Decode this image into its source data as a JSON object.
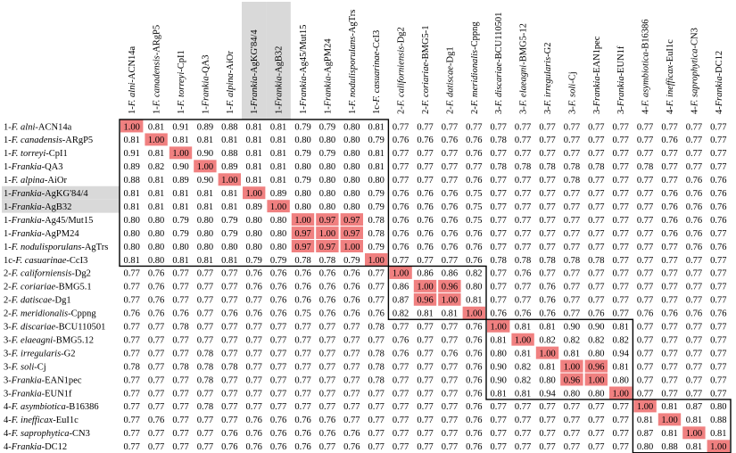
{
  "chart_data": {
    "type": "heatmap",
    "highlight_color": "#f08080",
    "shade_color": "#d9d9d9",
    "labels": [
      [
        "1-",
        "F. alni",
        "-ACN14a"
      ],
      [
        "1-",
        "F. canadensis",
        "-ARgP5"
      ],
      [
        "1-",
        "F. torreyi",
        "-CpI1"
      ],
      [
        "1-",
        "Frankia",
        "-QA3"
      ],
      [
        "1-",
        "F. alpina",
        "-AiOr"
      ],
      [
        "1-",
        "Frankia",
        "-AgKG'84/4"
      ],
      [
        "1-",
        "Frankia",
        "-AgB32"
      ],
      [
        "1-",
        "Frankia",
        "-Ag45/Mut15"
      ],
      [
        "1-",
        "Frankia",
        "-AgPM24"
      ],
      [
        "1-",
        "F. nodulisporulans",
        "-AgTrs"
      ],
      [
        "1c-",
        "F. casuarinae",
        "-CcI3"
      ],
      [
        "2-",
        "F. californiensis",
        "-Dg2"
      ],
      [
        "2-",
        "F. coriariae",
        "-BMG5.1"
      ],
      [
        "2-",
        "F. datiscae",
        "-Dg1"
      ],
      [
        "2-",
        "F. meridionalis",
        "-Cppng"
      ],
      [
        "3-",
        "F. discariae",
        "-BCU110501"
      ],
      [
        "3-",
        "F. elaeagni",
        "-BMG5.12"
      ],
      [
        "3-",
        "F. irregularis",
        "-G2"
      ],
      [
        "3-",
        "F. soli",
        "-Cj"
      ],
      [
        "3-",
        "Frankia",
        "-EAN1pec"
      ],
      [
        "3-",
        "Frankia",
        "-EUN1f"
      ],
      [
        "4-",
        "F. asymbiotica",
        "-B16386"
      ],
      [
        "4-",
        "F. inefficax",
        "-EuI1c"
      ],
      [
        "4-",
        "F. saprophytica",
        "-CN3"
      ],
      [
        "4-",
        "Frankia",
        "-DC12"
      ]
    ],
    "column_labels": [
      [
        "1-",
        "F. alni",
        "-ACN14a"
      ],
      [
        "1-",
        "F. canadensis",
        "-ARgP5"
      ],
      [
        "1-",
        "F. torreyi",
        "-CpI1"
      ],
      [
        "1-",
        "Frankia",
        "-QA3"
      ],
      [
        "1-",
        "F. alpina",
        "-AiOr"
      ],
      [
        "1-",
        "Frankia",
        "-AgKG'84/4"
      ],
      [
        "1-",
        "Frankia",
        "-AgB32"
      ],
      [
        "1-",
        "Frankia",
        "-Ag45/Mut15"
      ],
      [
        "1-",
        "Frankia",
        "-AgPM24"
      ],
      [
        "1-",
        "F. nodulisporulans",
        "-AgTrs"
      ],
      [
        "1c-",
        "F. casuarinae",
        "-CcI3"
      ],
      [
        "2-",
        "F. californiensis",
        "-Dg2"
      ],
      [
        "2-",
        "F. coriariae",
        "-BMG5-1"
      ],
      [
        "2-",
        "F. datiscae",
        "-Dg1"
      ],
      [
        "2-",
        "F. meridionalis",
        "-Cppng"
      ],
      [
        "3-",
        "F. discariae",
        "-BCU110501"
      ],
      [
        "3-",
        "F. elaeagni",
        "-BMG5-12"
      ],
      [
        "3-",
        "F. irregularis",
        "-G2"
      ],
      [
        "3-",
        "F. soli",
        "-Cj"
      ],
      [
        "3-",
        "Frankia",
        "-EAN1pec"
      ],
      [
        "3-",
        "Frankia",
        "-EUN1f"
      ],
      [
        "4-",
        "F. asymbiotica",
        "-B16386"
      ],
      [
        "4-",
        "F. inefficax",
        "-EuI1c"
      ],
      [
        "4-",
        "F. saprophytica",
        "-CN3"
      ],
      [
        "4-",
        "Frankia",
        "-DC12"
      ]
    ],
    "shaded_items": [
      5,
      6
    ],
    "cluster_boxes": [
      [
        0,
        10
      ],
      [
        11,
        14
      ],
      [
        15,
        20
      ],
      [
        21,
        24
      ]
    ],
    "highlighted_cells": [
      [
        0,
        0
      ],
      [
        1,
        1
      ],
      [
        2,
        2
      ],
      [
        3,
        3
      ],
      [
        4,
        4
      ],
      [
        5,
        5
      ],
      [
        6,
        6
      ],
      [
        7,
        7
      ],
      [
        7,
        8
      ],
      [
        7,
        9
      ],
      [
        8,
        7
      ],
      [
        8,
        8
      ],
      [
        8,
        9
      ],
      [
        9,
        7
      ],
      [
        9,
        8
      ],
      [
        9,
        9
      ],
      [
        10,
        10
      ],
      [
        11,
        11
      ],
      [
        12,
        12
      ],
      [
        12,
        13
      ],
      [
        13,
        12
      ],
      [
        13,
        13
      ],
      [
        14,
        14
      ],
      [
        15,
        15
      ],
      [
        16,
        16
      ],
      [
        17,
        17
      ],
      [
        18,
        18
      ],
      [
        18,
        19
      ],
      [
        19,
        18
      ],
      [
        19,
        19
      ],
      [
        20,
        20
      ],
      [
        21,
        21
      ],
      [
        22,
        22
      ],
      [
        23,
        23
      ],
      [
        24,
        24
      ]
    ],
    "values": [
      [
        "1.00",
        "0.81",
        "0.91",
        "0.89",
        "0.88",
        "0.81",
        "0.81",
        "0.79",
        "0.79",
        "0.80",
        "0.81",
        "0.77",
        "0.77",
        "0.77",
        "0.77",
        "0.77",
        "0.77",
        "0.77",
        "0.77",
        "0.77",
        "0.77",
        "0.77",
        "0.77",
        "0.77",
        "0.77"
      ],
      [
        "0.81",
        "1.00",
        "0.81",
        "0.81",
        "0.81",
        "0.81",
        "0.81",
        "0.80",
        "0.80",
        "0.80",
        "0.79",
        "0.76",
        "0.76",
        "0.76",
        "0.76",
        "0.78",
        "0.77",
        "0.77",
        "0.77",
        "0.77",
        "0.77",
        "0.77",
        "0.76",
        "0.77",
        "0.77"
      ],
      [
        "0.91",
        "0.81",
        "1.00",
        "0.90",
        "0.88",
        "0.81",
        "0.81",
        "0.79",
        "0.79",
        "0.80",
        "0.81",
        "0.77",
        "0.77",
        "0.77",
        "0.76",
        "0.77",
        "0.77",
        "0.77",
        "0.77",
        "0.77",
        "0.77",
        "0.77",
        "0.77",
        "0.77",
        "0.77"
      ],
      [
        "0.89",
        "0.82",
        "0.90",
        "1.00",
        "0.89",
        "0.81",
        "0.81",
        "0.80",
        "0.80",
        "0.80",
        "0.81",
        "0.77",
        "0.77",
        "0.77",
        "0.77",
        "0.78",
        "0.78",
        "0.78",
        "0.78",
        "0.78",
        "0.77",
        "0.78",
        "0.77",
        "0.77",
        "0.77"
      ],
      [
        "0.88",
        "0.81",
        "0.89",
        "0.90",
        "1.00",
        "0.81",
        "0.81",
        "0.79",
        "0.80",
        "0.80",
        "0.80",
        "0.77",
        "0.77",
        "0.77",
        "0.76",
        "0.77",
        "0.77",
        "0.77",
        "0.78",
        "0.77",
        "0.77",
        "0.77",
        "0.77",
        "0.76",
        "0.76"
      ],
      [
        "0.81",
        "0.81",
        "0.81",
        "0.81",
        "0.81",
        "1.00",
        "0.89",
        "0.80",
        "0.80",
        "0.80",
        "0.79",
        "0.76",
        "0.76",
        "0.76",
        "0.75",
        "0.77",
        "0.77",
        "0.77",
        "0.77",
        "0.77",
        "0.77",
        "0.77",
        "0.76",
        "0.76",
        "0.76"
      ],
      [
        "0.81",
        "0.81",
        "0.81",
        "0.81",
        "0.81",
        "0.89",
        "1.00",
        "0.80",
        "0.80",
        "0.80",
        "0.79",
        "0.76",
        "0.76",
        "0.76",
        "0.75",
        "0.77",
        "0.77",
        "0.77",
        "0.77",
        "0.77",
        "0.77",
        "0.77",
        "0.76",
        "0.76",
        "0.76"
      ],
      [
        "0.80",
        "0.80",
        "0.79",
        "0.80",
        "0.79",
        "0.80",
        "0.80",
        "1.00",
        "0.97",
        "0.97",
        "0.78",
        "0.76",
        "0.76",
        "0.76",
        "0.75",
        "0.77",
        "0.77",
        "0.77",
        "0.77",
        "0.77",
        "0.77",
        "0.77",
        "0.76",
        "0.76",
        "0.76"
      ],
      [
        "0.80",
        "0.80",
        "0.79",
        "0.80",
        "0.79",
        "0.80",
        "0.80",
        "0.97",
        "1.00",
        "0.97",
        "0.78",
        "0.76",
        "0.76",
        "0.76",
        "0.76",
        "0.77",
        "0.77",
        "0.77",
        "0.77",
        "0.77",
        "0.77",
        "0.77",
        "0.76",
        "0.76",
        "0.77"
      ],
      [
        "0.80",
        "0.80",
        "0.80",
        "0.80",
        "0.80",
        "0.80",
        "0.80",
        "0.97",
        "0.97",
        "1.00",
        "0.79",
        "0.76",
        "0.76",
        "0.76",
        "0.76",
        "0.77",
        "0.77",
        "0.77",
        "0.77",
        "0.77",
        "0.77",
        "0.77",
        "0.77",
        "0.76",
        "0.76"
      ],
      [
        "0.81",
        "0.80",
        "0.81",
        "0.81",
        "0.81",
        "0.79",
        "0.79",
        "0.78",
        "0.78",
        "0.79",
        "1.00",
        "0.77",
        "0.77",
        "0.77",
        "0.76",
        "0.78",
        "0.78",
        "0.78",
        "0.78",
        "0.78",
        "0.77",
        "0.77",
        "0.77",
        "0.77",
        "0.77"
      ],
      [
        "0.77",
        "0.76",
        "0.77",
        "0.77",
        "0.77",
        "0.76",
        "0.76",
        "0.76",
        "0.76",
        "0.76",
        "0.77",
        "1.00",
        "0.86",
        "0.86",
        "0.82",
        "0.77",
        "0.76",
        "0.77",
        "0.77",
        "0.77",
        "0.77",
        "0.77",
        "0.77",
        "0.77",
        "0.77"
      ],
      [
        "0.77",
        "0.76",
        "0.77",
        "0.77",
        "0.77",
        "0.76",
        "0.76",
        "0.76",
        "0.76",
        "0.76",
        "0.77",
        "0.86",
        "1.00",
        "0.96",
        "0.80",
        "0.77",
        "0.77",
        "0.76",
        "0.77",
        "0.77",
        "0.77",
        "0.77",
        "0.77",
        "0.77",
        "0.77"
      ],
      [
        "0.77",
        "0.76",
        "0.77",
        "0.77",
        "0.77",
        "0.77",
        "0.76",
        "0.76",
        "0.76",
        "0.76",
        "0.77",
        "0.87",
        "0.96",
        "1.00",
        "0.81",
        "0.77",
        "0.77",
        "0.76",
        "0.77",
        "0.77",
        "0.77",
        "0.77",
        "0.77",
        "0.77",
        "0.77"
      ],
      [
        "0.76",
        "0.76",
        "0.76",
        "0.77",
        "0.76",
        "0.76",
        "0.76",
        "0.75",
        "0.76",
        "0.76",
        "0.76",
        "0.82",
        "0.81",
        "0.81",
        "1.00",
        "0.76",
        "0.76",
        "0.76",
        "0.77",
        "0.76",
        "0.77",
        "0.76",
        "0.76",
        "0.76",
        "0.76"
      ],
      [
        "0.77",
        "0.77",
        "0.78",
        "0.77",
        "0.77",
        "0.77",
        "0.77",
        "0.77",
        "0.77",
        "0.77",
        "0.78",
        "0.77",
        "0.77",
        "0.77",
        "0.76",
        "1.00",
        "0.81",
        "0.81",
        "0.90",
        "0.90",
        "0.81",
        "0.77",
        "0.77",
        "0.77",
        "0.77"
      ],
      [
        "0.77",
        "0.77",
        "0.77",
        "0.77",
        "0.77",
        "0.77",
        "0.77",
        "0.77",
        "0.77",
        "0.77",
        "0.77",
        "0.76",
        "0.77",
        "0.77",
        "0.76",
        "0.81",
        "1.00",
        "0.82",
        "0.82",
        "0.82",
        "0.82",
        "0.77",
        "0.77",
        "0.77",
        "0.77"
      ],
      [
        "0.77",
        "0.77",
        "0.77",
        "0.78",
        "0.77",
        "0.77",
        "0.77",
        "0.77",
        "0.77",
        "0.77",
        "0.78",
        "0.76",
        "0.77",
        "0.76",
        "0.76",
        "0.80",
        "0.81",
        "1.00",
        "0.81",
        "0.80",
        "0.94",
        "0.77",
        "0.77",
        "0.77",
        "0.77"
      ],
      [
        "0.78",
        "0.77",
        "0.78",
        "0.78",
        "0.78",
        "0.77",
        "0.77",
        "0.77",
        "0.77",
        "0.77",
        "0.78",
        "0.77",
        "0.77",
        "0.77",
        "0.76",
        "0.90",
        "0.82",
        "0.81",
        "1.00",
        "0.96",
        "0.81",
        "0.77",
        "0.77",
        "0.77",
        "0.77"
      ],
      [
        "0.77",
        "0.77",
        "0.77",
        "0.78",
        "0.77",
        "0.77",
        "0.77",
        "0.77",
        "0.77",
        "0.77",
        "0.78",
        "0.77",
        "0.77",
        "0.77",
        "0.76",
        "0.90",
        "0.82",
        "0.80",
        "0.96",
        "1.00",
        "0.80",
        "0.77",
        "0.77",
        "0.77",
        "0.77"
      ],
      [
        "0.77",
        "0.77",
        "0.77",
        "0.77",
        "0.77",
        "0.77",
        "0.77",
        "0.77",
        "0.77",
        "0.77",
        "0.77",
        "0.77",
        "0.77",
        "0.77",
        "0.76",
        "0.81",
        "0.81",
        "0.94",
        "0.80",
        "0.80",
        "1.00",
        "0.77",
        "0.77",
        "0.77",
        "0.77"
      ],
      [
        "0.77",
        "0.77",
        "0.77",
        "0.78",
        "0.77",
        "0.77",
        "0.77",
        "0.77",
        "0.77",
        "0.77",
        "0.77",
        "0.77",
        "0.77",
        "0.77",
        "0.76",
        "0.77",
        "0.77",
        "0.77",
        "0.77",
        "0.77",
        "0.77",
        "1.00",
        "0.81",
        "0.87",
        "0.80"
      ],
      [
        "0.77",
        "0.76",
        "0.77",
        "0.77",
        "0.77",
        "0.76",
        "0.76",
        "0.76",
        "0.76",
        "0.77",
        "0.77",
        "0.77",
        "0.77",
        "0.77",
        "0.76",
        "0.77",
        "0.77",
        "0.77",
        "0.77",
        "0.77",
        "0.77",
        "0.81",
        "1.00",
        "0.81",
        "0.88"
      ],
      [
        "0.77",
        "0.77",
        "0.77",
        "0.77",
        "0.76",
        "0.76",
        "0.76",
        "0.76",
        "0.76",
        "0.76",
        "0.77",
        "0.77",
        "0.77",
        "0.77",
        "0.76",
        "0.77",
        "0.77",
        "0.77",
        "0.77",
        "0.77",
        "0.77",
        "0.87",
        "0.81",
        "1.00",
        "0.81"
      ],
      [
        "0.77",
        "0.77",
        "0.77",
        "0.77",
        "0.76",
        "0.76",
        "0.76",
        "0.76",
        "0.77",
        "0.76",
        "0.77",
        "0.77",
        "0.77",
        "0.77",
        "0.76",
        "0.77",
        "0.77",
        "0.77",
        "0.77",
        "0.77",
        "0.77",
        "0.80",
        "0.88",
        "0.81",
        "1.00"
      ]
    ]
  }
}
